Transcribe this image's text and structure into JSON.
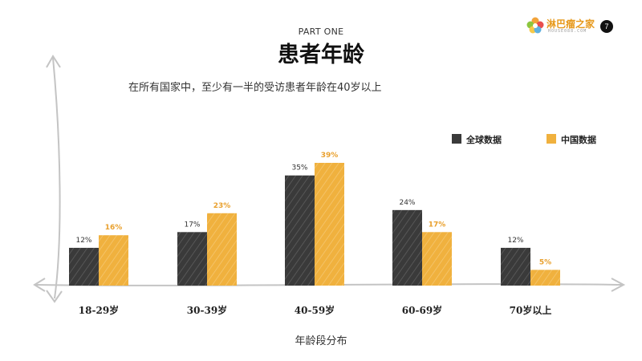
{
  "header": {
    "part": "PART ONE",
    "title": "患者年龄",
    "subtitle": "在所有国家中，至少有一半的受访患者年龄在40岁以上"
  },
  "logo": {
    "name": "淋巴瘤之家",
    "tagline": "HOUSE088.COM",
    "page": "7"
  },
  "colors": {
    "global": "#3a3a3a",
    "china": "#f0b13e",
    "china_label": "#e9a02d",
    "axis": "#c4c4c4"
  },
  "chart_data": {
    "type": "bar",
    "categories": [
      "18-29岁",
      "30-39岁",
      "40-59岁",
      "60-69岁",
      "70岁以上"
    ],
    "series": [
      {
        "name": "全球数据",
        "values": [
          12,
          17,
          35,
          24,
          12
        ],
        "labels": [
          "12%",
          "17%",
          "35%",
          "24%",
          "12%"
        ]
      },
      {
        "name": "中国数据",
        "values": [
          16,
          23,
          39,
          17,
          5
        ],
        "labels": [
          "16%",
          "23%",
          "39%",
          "17%",
          "5%"
        ]
      }
    ],
    "title": "患者年龄",
    "xlabel": "年龄段分布",
    "ylabel": "",
    "ylim": [
      0,
      40
    ],
    "legend": "top-right",
    "grid": false
  }
}
